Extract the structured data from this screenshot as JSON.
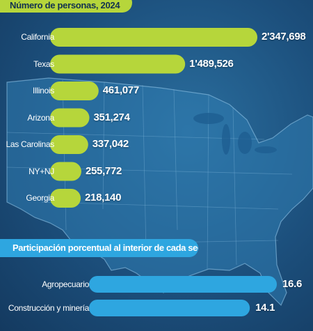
{
  "colors": {
    "green_bar": "#b6d63b",
    "blue_bar": "#2ea6e0",
    "map_land": "#2f7bb0",
    "map_border": "#8fc3e6"
  },
  "chart_data": [
    {
      "type": "bar",
      "orientation": "horizontal",
      "title": "Número de personas, 2024",
      "categories": [
        "California",
        "Texas",
        "Illinois",
        "Arizona",
        "Las Carolinas",
        "NY+NJ",
        "Georgia"
      ],
      "values": [
        2347698,
        1489526,
        461077,
        351274,
        337042,
        255772,
        218140
      ],
      "value_labels": [
        "2'347,698",
        "1'489,526",
        "461,077",
        "351,274",
        "337,042",
        "255,772",
        "218,140"
      ],
      "xlim": [
        0,
        2347698
      ]
    },
    {
      "type": "bar",
      "orientation": "horizontal",
      "title": "Participación porcentual al interior de cada sector",
      "categories": [
        "Agropecuario",
        "Construcción y minería"
      ],
      "values": [
        16.6,
        14.1
      ],
      "value_labels": [
        "16.6",
        "14.1"
      ],
      "xlim": [
        0,
        16.6
      ]
    }
  ]
}
